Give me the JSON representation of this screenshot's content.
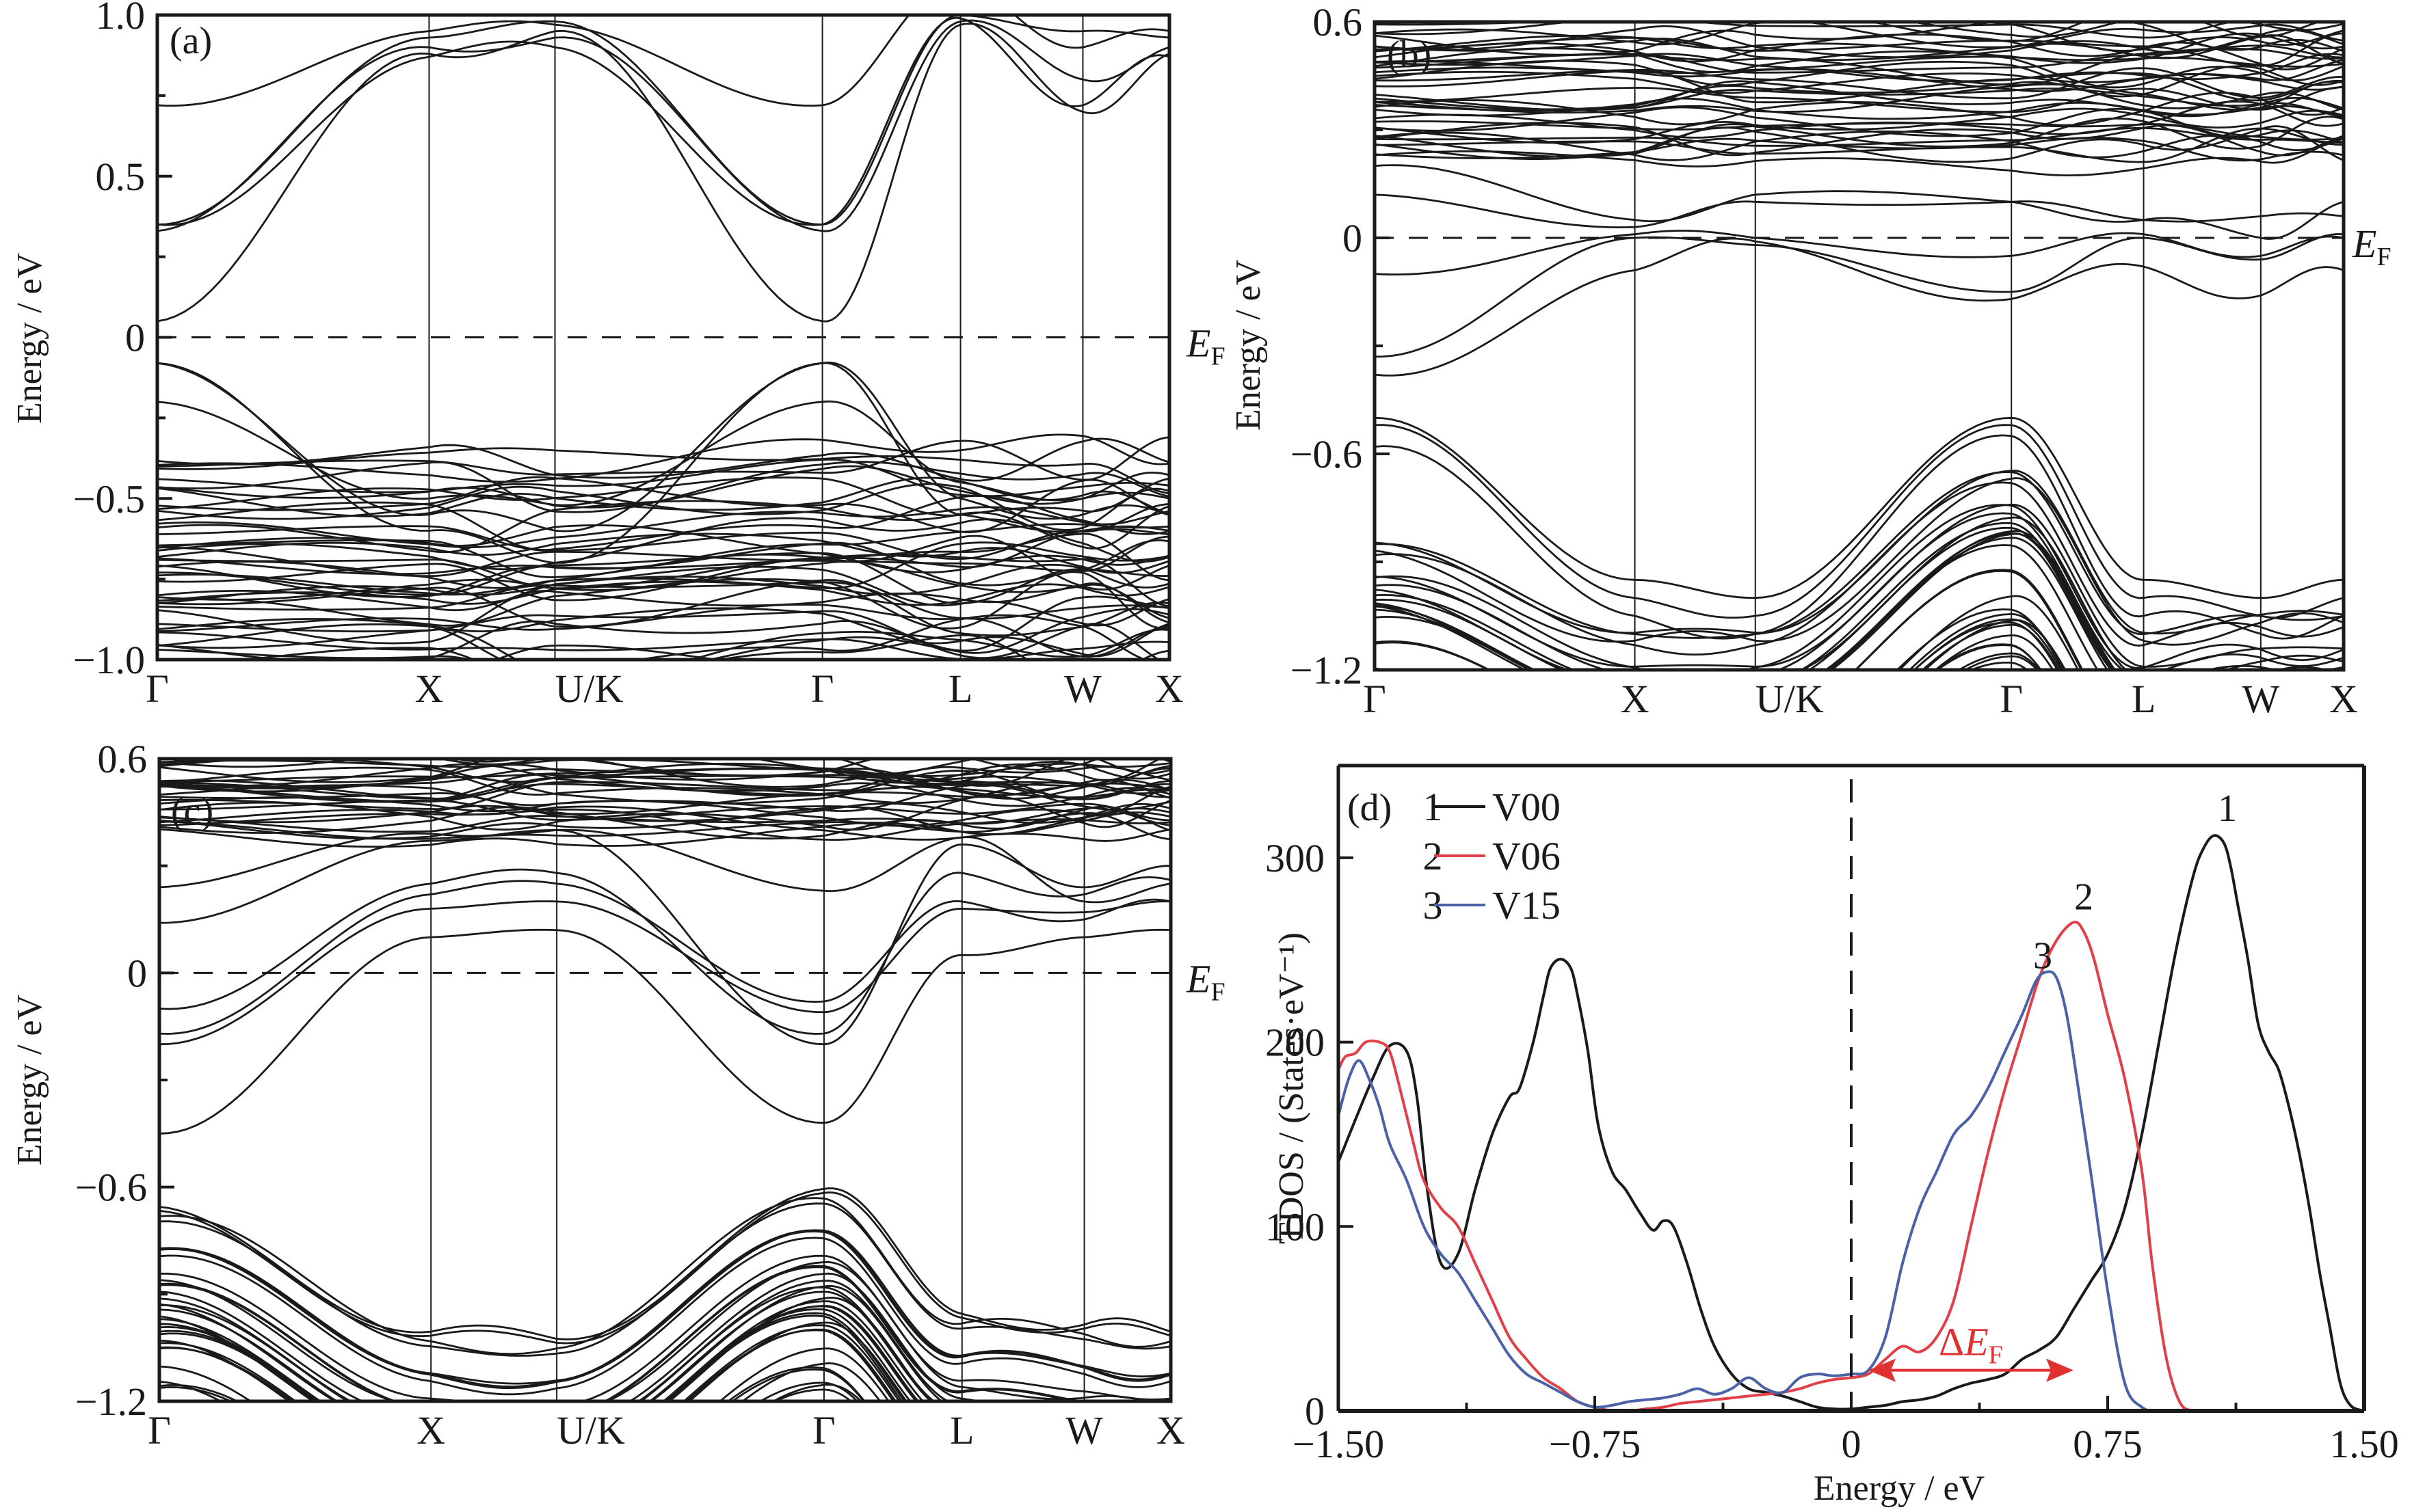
{
  "figure": {
    "panels": [
      "(a)",
      "(b)",
      "(c)",
      "(d)"
    ],
    "fermi_label": "E",
    "fermi_sub": "F",
    "kpath_labels": [
      "Γ",
      "X",
      "U/K",
      "Γ",
      "L",
      "W",
      "X"
    ],
    "kpath_positions": [
      0,
      0.311,
      0.455,
      0.761,
      0.919,
      1.059,
      1.158
    ]
  },
  "chart_data": [
    {
      "panel": "(a)",
      "type": "line",
      "title": "",
      "xlabel": "",
      "ylabel": "Energy / eV",
      "ylim": [
        -1.0,
        1.0
      ],
      "yticks": [
        "1.0",
        "0.5",
        "0",
        "−0.5",
        "−1.0"
      ],
      "ytick_values": [
        1.0,
        0.5,
        0,
        -0.5,
        -1.0
      ],
      "x_ticks": [
        "Γ",
        "X",
        "U/K",
        "Γ",
        "L",
        "W",
        "X"
      ],
      "fermi_level": 0,
      "notes": "Band structure; conduction band minimum ~0.05 eV at Γ, valence band maximum ~−0.08 eV at Γ (gap ~0.13 eV)",
      "key_points": {
        "cbm_gamma": 0.05,
        "vbm_gamma": -0.08,
        "second_vb_gamma": -0.2,
        "cb_gamma_upper": [
          0.33,
          0.35,
          0.72
        ],
        "cb_left_gamma": [
          0.05,
          0.33,
          0.35,
          0.72
        ]
      }
    },
    {
      "panel": "(b)",
      "type": "line",
      "ylabel": "Energy / eV",
      "ylim": [
        -1.2,
        0.6
      ],
      "yticks": [
        "0.6",
        "0",
        "−0.6",
        "−1.2"
      ],
      "ytick_values": [
        0.6,
        0,
        -0.6,
        -1.2
      ],
      "x_ticks": [
        "Γ",
        "X",
        "U/K",
        "Γ",
        "L",
        "W",
        "X"
      ],
      "fermi_level": 0,
      "notes": "Bands cross E_F; band minima at Γ around −0.05, −0.15, −0.17 eV; valence top at Γ ~−0.55 eV",
      "key_points": {
        "gamma_bands": [
          -0.05,
          -0.15,
          -0.17,
          -0.5,
          -0.52,
          -0.55,
          -0.58
        ],
        "x_bands": [
          0.01,
          0.0,
          -0.09
        ]
      }
    },
    {
      "panel": "(c)",
      "type": "line",
      "ylabel": "Energy / eV",
      "ylim": [
        -1.2,
        0.6
      ],
      "yticks": [
        "0.6",
        "0",
        "−0.6",
        "−1.2"
      ],
      "ytick_values": [
        0.6,
        0,
        -0.6,
        -1.2
      ],
      "x_ticks": [
        "Γ",
        "X",
        "U/K",
        "Γ",
        "L",
        "W",
        "X"
      ],
      "fermi_level": 0,
      "notes": "Conduction band dips below E_F near Γ (~−0.1 eV); lowest CB at Γ ~−0.42 eV; VBM at Γ ~−0.6 eV",
      "key_points": {
        "gamma_bands": [
          0.23,
          -0.08,
          -0.11,
          -0.17,
          -0.2,
          -0.42,
          -0.6,
          -0.62
        ]
      }
    },
    {
      "panel": "(d)",
      "type": "line",
      "title": "",
      "xlabel": "Energy / eV",
      "ylabel": "TDOS / (States·eV⁻¹)",
      "xlim": [
        -1.5,
        1.5
      ],
      "ylim": [
        0,
        350
      ],
      "xticks": [
        "−1.50",
        "−0.75",
        "0",
        "0.75",
        "1.50"
      ],
      "xtick_values": [
        -1.5,
        -0.75,
        0,
        0.75,
        1.5
      ],
      "yticks": [
        "0",
        "100",
        "200",
        "300"
      ],
      "ytick_values": [
        0,
        100,
        200,
        300
      ],
      "legend": [
        {
          "num": "1",
          "name": "V00",
          "color": "#1a1a1a"
        },
        {
          "num": "2",
          "name": "V06",
          "color": "#e04048"
        },
        {
          "num": "3",
          "name": "V15",
          "color": "#4a62a8"
        }
      ],
      "legend_position": "top-left",
      "annotations": [
        {
          "text": "1",
          "x": 1.1,
          "y": 320
        },
        {
          "text": "2",
          "x": 0.68,
          "y": 272
        },
        {
          "text": "3",
          "x": 0.56,
          "y": 240
        },
        {
          "text": "ΔE",
          "sub": "F",
          "arrow_from": 0.05,
          "arrow_to": 0.65,
          "arrow_y": 22,
          "color": "#e03030"
        }
      ],
      "series": [
        {
          "name": "V00",
          "label": "1",
          "color": "#1a1a1a",
          "x": [
            -1.5,
            -1.45,
            -1.4,
            -1.35,
            -1.3,
            -1.27,
            -1.24,
            -1.2,
            -1.15,
            -1.1,
            -1.05,
            -1.0,
            -0.97,
            -0.93,
            -0.9,
            -0.88,
            -0.85,
            -0.82,
            -0.8,
            -0.77,
            -0.74,
            -0.7,
            -0.66,
            -0.62,
            -0.58,
            -0.55,
            -0.52,
            -0.48,
            -0.44,
            -0.4,
            -0.35,
            -0.3,
            -0.25,
            -0.2,
            -0.15,
            -0.1,
            -0.05,
            0.0,
            0.05,
            0.1,
            0.15,
            0.2,
            0.25,
            0.3,
            0.35,
            0.4,
            0.45,
            0.5,
            0.55,
            0.6,
            0.65,
            0.7,
            0.75,
            0.8,
            0.85,
            0.9,
            0.95,
            1.0,
            1.03,
            1.06,
            1.09,
            1.11,
            1.13,
            1.16,
            1.19,
            1.22,
            1.25,
            1.28,
            1.31,
            1.34,
            1.37,
            1.4,
            1.43,
            1.46,
            1.5
          ],
          "y": [
            135,
            158,
            180,
            198,
            195,
            170,
            120,
            80,
            85,
            120,
            150,
            170,
            175,
            200,
            225,
            240,
            245,
            240,
            225,
            195,
            155,
            130,
            120,
            108,
            98,
            103,
            100,
            80,
            55,
            35,
            20,
            12,
            10,
            8,
            5,
            2,
            1,
            1,
            2,
            3,
            5,
            6,
            8,
            12,
            15,
            17,
            20,
            28,
            33,
            40,
            55,
            70,
            85,
            110,
            150,
            200,
            250,
            290,
            305,
            312,
            308,
            295,
            275,
            245,
            210,
            195,
            185,
            165,
            140,
            110,
            75,
            45,
            15,
            3,
            0
          ]
        },
        {
          "name": "V06",
          "label": "2",
          "color": "#e04048",
          "x": [
            -1.5,
            -1.48,
            -1.45,
            -1.42,
            -1.38,
            -1.35,
            -1.32,
            -1.28,
            -1.25,
            -1.2,
            -1.15,
            -1.1,
            -1.05,
            -1.0,
            -0.95,
            -0.9,
            -0.85,
            -0.8,
            -0.75,
            -0.7,
            -0.65,
            -0.6,
            -0.55,
            -0.5,
            -0.45,
            -0.4,
            -0.35,
            -0.3,
            -0.25,
            -0.2,
            -0.15,
            -0.1,
            -0.05,
            0.0,
            0.05,
            0.1,
            0.15,
            0.2,
            0.25,
            0.3,
            0.35,
            0.4,
            0.45,
            0.5,
            0.55,
            0.6,
            0.65,
            0.68,
            0.71,
            0.75,
            0.8,
            0.85,
            0.88,
            0.92,
            0.96,
            1.0,
            1.05,
            1.1,
            1.2,
            1.3,
            1.4,
            1.5
          ],
          "y": [
            185,
            192,
            194,
            200,
            200,
            195,
            175,
            145,
            125,
            110,
            100,
            80,
            60,
            40,
            28,
            18,
            12,
            5,
            2,
            0,
            0,
            1,
            2,
            4,
            5,
            6,
            7,
            8,
            9,
            10,
            12,
            15,
            17,
            18,
            20,
            28,
            35,
            32,
            40,
            60,
            100,
            140,
            175,
            205,
            235,
            255,
            265,
            260,
            245,
            215,
            180,
            130,
            80,
            30,
            5,
            0,
            0,
            0,
            0,
            0,
            0,
            0
          ]
        },
        {
          "name": "V15",
          "label": "3",
          "color": "#4a62a8",
          "x": [
            -1.5,
            -1.47,
            -1.44,
            -1.41,
            -1.38,
            -1.35,
            -1.3,
            -1.25,
            -1.2,
            -1.15,
            -1.1,
            -1.05,
            -1.0,
            -0.95,
            -0.9,
            -0.85,
            -0.8,
            -0.75,
            -0.7,
            -0.65,
            -0.6,
            -0.55,
            -0.5,
            -0.45,
            -0.4,
            -0.35,
            -0.3,
            -0.25,
            -0.2,
            -0.15,
            -0.1,
            -0.05,
            0.0,
            0.05,
            0.1,
            0.15,
            0.2,
            0.25,
            0.3,
            0.35,
            0.4,
            0.45,
            0.5,
            0.54,
            0.57,
            0.6,
            0.63,
            0.66,
            0.7,
            0.75,
            0.8,
            0.85,
            0.9,
            1.0,
            1.2,
            1.4,
            1.5
          ],
          "y": [
            160,
            180,
            190,
            180,
            165,
            145,
            125,
            100,
            85,
            75,
            60,
            45,
            30,
            20,
            15,
            10,
            5,
            2,
            3,
            5,
            6,
            7,
            9,
            12,
            9,
            12,
            18,
            12,
            10,
            18,
            20,
            19,
            20,
            22,
            40,
            80,
            110,
            130,
            150,
            160,
            175,
            195,
            215,
            233,
            238,
            235,
            215,
            180,
            130,
            65,
            15,
            2,
            0,
            0,
            0,
            0,
            0
          ]
        }
      ]
    }
  ]
}
